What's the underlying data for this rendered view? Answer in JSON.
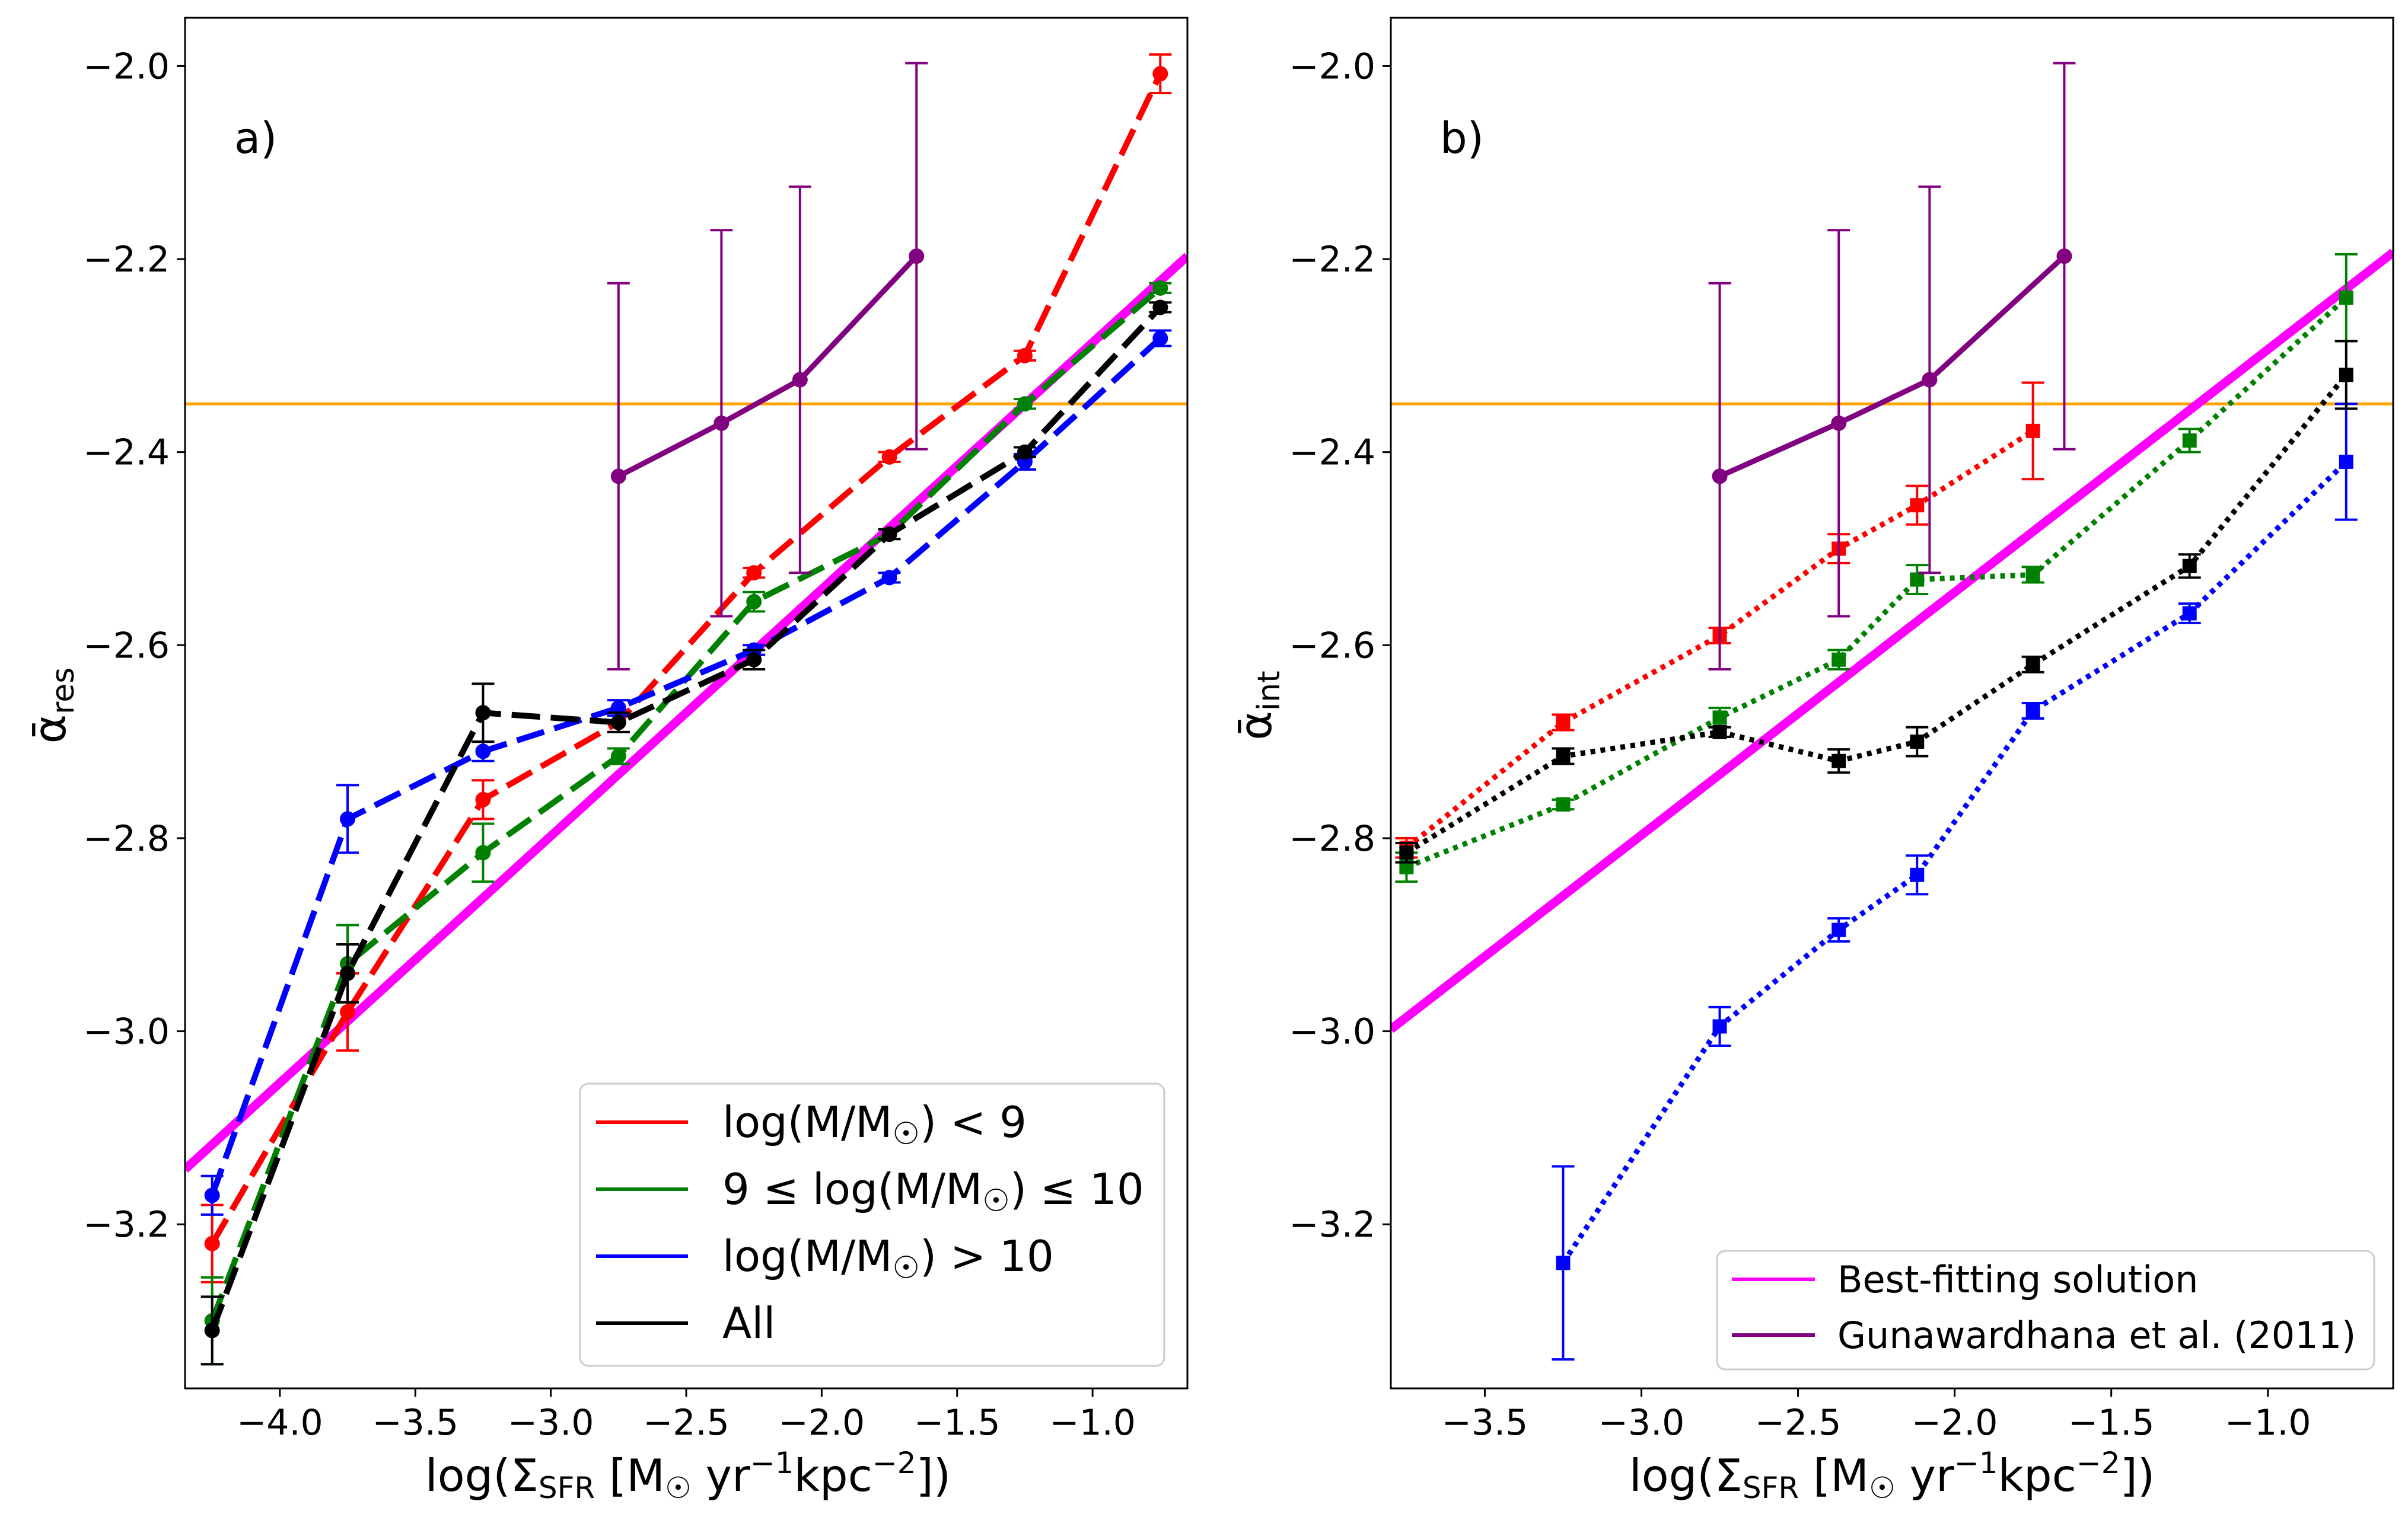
{
  "chart_data": [
    {
      "type": "line",
      "panel_label": "a)",
      "xlabel": "log(Σ_SFR [M☉ yr⁻¹kpc⁻²])",
      "ylabel": "ᾱ_res",
      "xlim": [
        -4.35,
        -0.65
      ],
      "ylim": [
        -3.37,
        -1.95
      ],
      "xticks": [
        -4.0,
        -3.5,
        -3.0,
        -2.5,
        -2.0,
        -1.5,
        -1.0
      ],
      "yticks": [
        -3.2,
        -3.0,
        -2.8,
        -2.6,
        -2.4,
        -2.2,
        -2.0
      ],
      "xtick_labels": [
        "−4.0",
        "−3.5",
        "−3.0",
        "−2.5",
        "−2.0",
        "−1.5",
        "−1.0"
      ],
      "ytick_labels": [
        "−3.2",
        "−3.0",
        "−2.8",
        "−2.6",
        "−2.4",
        "−2.2",
        "−2.0"
      ],
      "reference_line": {
        "y": -2.35,
        "color": "#ffa500"
      },
      "best_fit": {
        "x": [
          -4.35,
          -0.65
        ],
        "y": [
          -3.143,
          -2.197
        ],
        "color": "#ff00ff"
      },
      "series": [
        {
          "name": "log(M/M☉) < 9",
          "color": "#ff0000",
          "style": "dashed",
          "marker": "circle",
          "x": [
            -4.25,
            -3.75,
            -3.25,
            -2.75,
            -2.25,
            -1.75,
            -1.25,
            -0.75
          ],
          "y": [
            -3.22,
            -2.98,
            -2.76,
            -2.68,
            -2.525,
            -2.405,
            -2.3,
            -2.008
          ],
          "err": [
            0.04,
            0.04,
            0.02,
            0.01,
            0.005,
            0.005,
            0.005,
            0.02
          ]
        },
        {
          "name": "9 ≤ log(M/M☉) ≤ 10",
          "color": "#008000",
          "style": "dashed",
          "marker": "circle",
          "x": [
            -4.25,
            -3.75,
            -3.25,
            -2.75,
            -2.25,
            -1.75,
            -1.25,
            -0.75
          ],
          "y": [
            -3.3,
            -2.93,
            -2.815,
            -2.715,
            -2.555,
            -2.485,
            -2.35,
            -2.23
          ],
          "err": [
            0.045,
            0.04,
            0.03,
            0.008,
            0.01,
            0.005,
            0.005,
            0.005
          ]
        },
        {
          "name": "log(M/M☉) > 10",
          "color": "#0000ff",
          "style": "dashed",
          "marker": "circle",
          "x": [
            -4.25,
            -3.75,
            -3.25,
            -2.75,
            -2.25,
            -1.75,
            -1.25,
            -0.75
          ],
          "y": [
            -3.17,
            -2.78,
            -2.71,
            -2.665,
            -2.605,
            -2.53,
            -2.41,
            -2.282
          ],
          "err": [
            0.02,
            0.035,
            0.01,
            0.008,
            0.005,
            0.005,
            0.008,
            0.008
          ]
        },
        {
          "name": "All",
          "color": "#000000",
          "style": "dashed",
          "marker": "circle",
          "x": [
            -4.25,
            -3.75,
            -3.25,
            -2.75,
            -2.25,
            -1.75,
            -1.25,
            -0.75
          ],
          "y": [
            -3.31,
            -2.94,
            -2.67,
            -2.68,
            -2.615,
            -2.485,
            -2.4,
            -2.25
          ],
          "err": [
            0.035,
            0.03,
            0.03,
            0.01,
            0.01,
            0.005,
            0.005,
            0.005
          ]
        },
        {
          "name": "Gunawardhana et al. (2011)",
          "color": "#800080",
          "style": "solid",
          "marker": "circle",
          "x": [
            -2.75,
            -2.37,
            -2.08,
            -1.65
          ],
          "y": [
            -2.425,
            -2.37,
            -2.325,
            -2.197
          ],
          "err": [
            0.2,
            0.2,
            0.2,
            0.2
          ]
        }
      ],
      "legend": {
        "location": "lower-right",
        "entries": [
          "log(M/M☉) < 9",
          "9 ≤ log(M/M☉) ≤ 10",
          "log(M/M☉) > 10",
          "All"
        ]
      }
    },
    {
      "type": "line",
      "panel_label": "b)",
      "xlabel": "log(Σ_SFR [M☉ yr⁻¹kpc⁻²])",
      "ylabel": "ᾱ_int",
      "xlim": [
        -3.8,
        -0.6
      ],
      "ylim": [
        -3.37,
        -1.95
      ],
      "xticks": [
        -3.5,
        -3.0,
        -2.5,
        -2.0,
        -1.5,
        -1.0
      ],
      "yticks": [
        -3.2,
        -3.0,
        -2.8,
        -2.6,
        -2.4,
        -2.2,
        -2.0
      ],
      "xtick_labels": [
        "−3.5",
        "−3.0",
        "−2.5",
        "−2.0",
        "−1.5",
        "−1.0"
      ],
      "ytick_labels": [
        "−3.2",
        "−3.0",
        "−2.8",
        "−2.6",
        "−2.4",
        "−2.2",
        "−2.0"
      ],
      "reference_line": {
        "y": -2.35,
        "color": "#ffa500"
      },
      "best_fit": {
        "x": [
          -3.8,
          -0.6
        ],
        "y": [
          -2.998,
          -2.193
        ],
        "color": "#ff00ff"
      },
      "series": [
        {
          "name": "log(M/M☉) < 9",
          "color": "#ff0000",
          "style": "dotted",
          "marker": "square",
          "x": [
            -3.75,
            -3.25,
            -2.75,
            -2.37,
            -2.12,
            -1.75
          ],
          "y": [
            -2.81,
            -2.68,
            -2.59,
            -2.5,
            -2.455,
            -2.378
          ],
          "err": [
            0.01,
            0.008,
            0.008,
            0.015,
            0.02,
            0.05
          ]
        },
        {
          "name": "9 ≤ log(M/M☉) ≤ 10",
          "color": "#008000",
          "style": "dotted",
          "marker": "square",
          "x": [
            -3.75,
            -3.25,
            -2.75,
            -2.37,
            -2.12,
            -1.75,
            -1.25,
            -0.75
          ],
          "y": [
            -2.83,
            -2.765,
            -2.675,
            -2.615,
            -2.532,
            -2.527,
            -2.388,
            -2.24
          ],
          "err": [
            0.015,
            0.005,
            0.01,
            0.01,
            0.015,
            0.008,
            0.012,
            0.045
          ]
        },
        {
          "name": "log(M/M☉) > 10",
          "color": "#0000ff",
          "style": "dotted",
          "marker": "square",
          "x": [
            -3.25,
            -2.75,
            -2.37,
            -2.12,
            -1.75,
            -1.25,
            -0.75
          ],
          "y": [
            -3.24,
            -2.995,
            -2.895,
            -2.838,
            -2.668,
            -2.567,
            -2.41
          ],
          "err": [
            0.1,
            0.02,
            0.012,
            0.02,
            0.008,
            0.01,
            0.06
          ]
        },
        {
          "name": "All",
          "color": "#000000",
          "style": "dotted",
          "marker": "square",
          "x": [
            -3.75,
            -3.25,
            -2.75,
            -2.37,
            -2.12,
            -1.75,
            -1.25,
            -0.75
          ],
          "y": [
            -2.815,
            -2.715,
            -2.69,
            -2.72,
            -2.7,
            -2.62,
            -2.518,
            -2.32
          ],
          "err": [
            0.01,
            0.008,
            0.005,
            0.012,
            0.015,
            0.008,
            0.012,
            0.035
          ]
        },
        {
          "name": "Gunawardhana et al. (2011)",
          "color": "#800080",
          "style": "solid",
          "marker": "circle",
          "x": [
            -2.75,
            -2.37,
            -2.08,
            -1.65
          ],
          "y": [
            -2.425,
            -2.37,
            -2.325,
            -2.197
          ],
          "err": [
            0.2,
            0.2,
            0.2,
            0.2
          ]
        }
      ],
      "legend": {
        "location": "lower-right",
        "entries": [
          "Best-fitting solution",
          "Gunawardhana et al. (2011)"
        ]
      }
    }
  ]
}
